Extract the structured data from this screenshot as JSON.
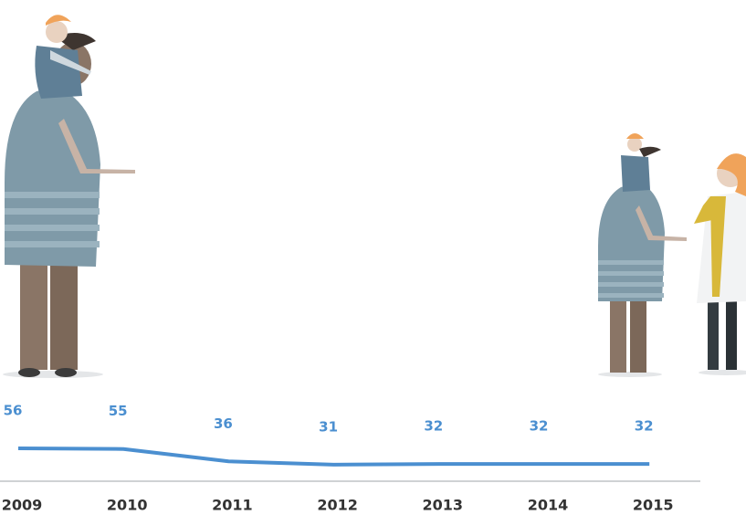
{
  "chart_data": {
    "type": "line",
    "categories": [
      "2009",
      "2010",
      "2011",
      "2012",
      "2013",
      "2014",
      "2015"
    ],
    "values": [
      56,
      55,
      36,
      31,
      32,
      32,
      32
    ],
    "color": "#4b8fd0",
    "ylim": [
      0,
      56
    ]
  }
}
